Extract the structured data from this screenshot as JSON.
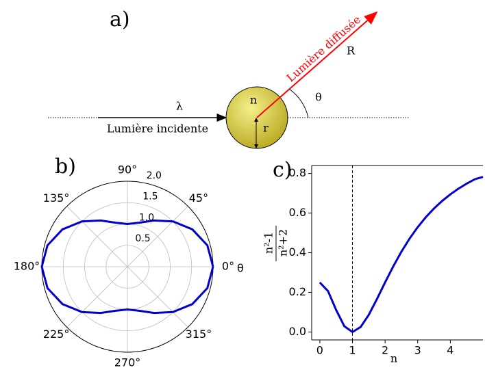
{
  "diagram": {
    "label": "a)",
    "wavelength": "λ",
    "incident": "Lumière incidente",
    "index": "n",
    "radius": "r",
    "angle": "θ",
    "scattered": "Lumière diffusée",
    "distance": "R"
  },
  "chart_data": [
    {
      "type": "polar",
      "panel": "b)",
      "angle_label": "θ",
      "x": [
        0,
        15,
        30,
        45,
        60,
        75,
        90,
        105,
        120,
        135,
        150,
        165,
        180,
        195,
        210,
        225,
        240,
        255,
        270,
        285,
        300,
        315,
        330,
        345,
        360
      ],
      "series": [
        {
          "color": "#0000cc",
          "values": [
            2,
            1.933,
            1.75,
            1.5,
            1.25,
            1.067,
            1,
            1.067,
            1.25,
            1.5,
            1.75,
            1.933,
            2,
            1.933,
            1.75,
            1.5,
            1.25,
            1.067,
            1,
            1.067,
            1.25,
            1.5,
            1.75,
            1.933,
            2
          ]
        }
      ],
      "ylim": [
        0,
        2
      ],
      "yticks": [
        0.5,
        {
          "value": 1,
          "label": "1.0"
        },
        1.5,
        {
          "value": 2,
          "label": "2.0"
        }
      ],
      "xticks": [
        {
          "value": 0,
          "label": "0°"
        },
        {
          "value": 45,
          "label": "45°"
        },
        {
          "value": 90,
          "label": "90°"
        },
        {
          "value": 135,
          "label": "135°"
        },
        {
          "value": 180,
          "label": "180°"
        },
        {
          "value": 225,
          "label": "225°"
        },
        {
          "value": 270,
          "label": "270°"
        },
        {
          "value": 315,
          "label": "315°"
        }
      ],
      "grid": true
    },
    {
      "type": "line",
      "panel": "c)",
      "xlabel": "n",
      "ylabel_numerator": "n²-1",
      "ylabel_denominator": "n²+2",
      "x": [
        0,
        0.25,
        0.5,
        0.75,
        1,
        1.25,
        1.5,
        1.75,
        2,
        2.25,
        2.5,
        2.75,
        3,
        3.25,
        3.5,
        3.75,
        4,
        4.25,
        4.5,
        4.75,
        5
      ],
      "series": [
        {
          "color": "#0000cc",
          "values": [
            0.25,
            0.2066,
            0.1111,
            0.0291,
            0,
            0.0249,
            0.0865,
            0.166,
            0.25,
            0.3309,
            0.405,
            0.471,
            0.5289,
            0.5794,
            0.6233,
            0.6613,
            0.6944,
            0.7233,
            0.7485,
            0.7706,
            0.7825
          ]
        }
      ],
      "xlim": [
        -0.25,
        5
      ],
      "ylim": [
        -0.04,
        0.84
      ],
      "xticks": [
        0,
        1,
        2,
        3,
        4
      ],
      "yticks": [
        {
          "value": 0,
          "label": "0.0"
        },
        0.2,
        0.4,
        0.6,
        0.8
      ],
      "vline": 1
    }
  ]
}
